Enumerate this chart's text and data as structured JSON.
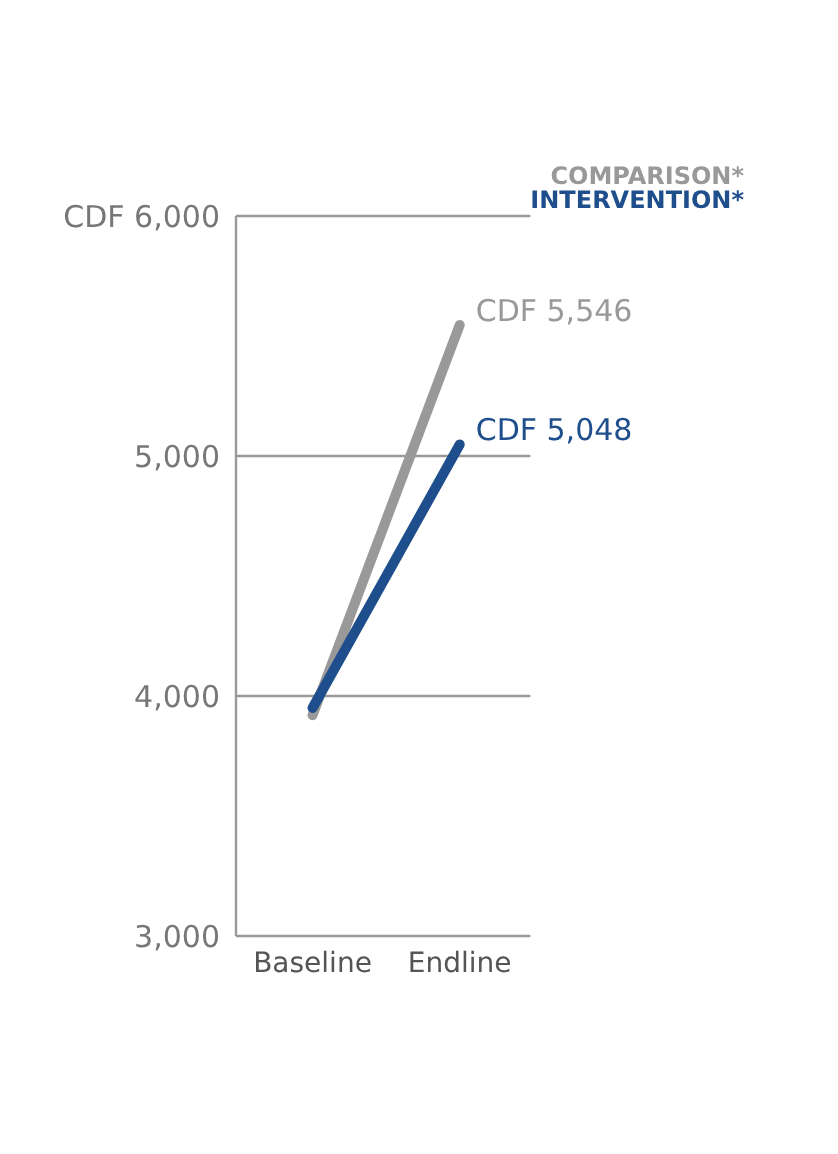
{
  "chart_data": {
    "type": "line",
    "categories": [
      "Baseline",
      "Endline"
    ],
    "series": [
      {
        "name": "COMPARISON*",
        "color": "#999999",
        "values": [
          3920,
          5546
        ],
        "value_labels": [
          null,
          "CDF 5,546"
        ]
      },
      {
        "name": "INTERVENTION*",
        "color": "#1f4e8c",
        "values": [
          3950,
          5048
        ],
        "value_labels": [
          null,
          "CDF 5,048"
        ]
      }
    ],
    "ylim": [
      3000,
      6000
    ],
    "yticks": [
      {
        "value": 3000,
        "label": "3,000"
      },
      {
        "value": 4000,
        "label": "4,000"
      },
      {
        "value": 5000,
        "label": "5,000"
      },
      {
        "value": 6000,
        "label": "CDF 6,000"
      }
    ],
    "grid": "y",
    "legend": "top right",
    "marker": "none",
    "line_style": "solid"
  }
}
